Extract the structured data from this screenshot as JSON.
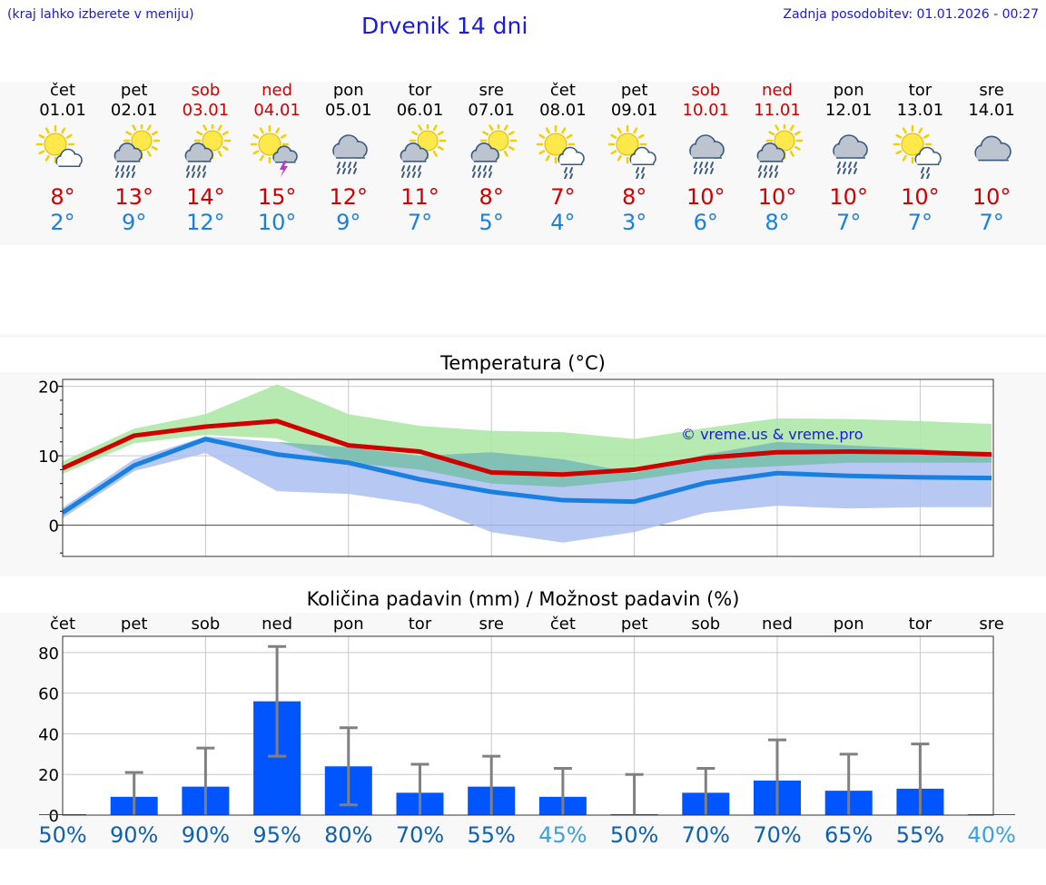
{
  "header": {
    "hint": "(kraj lahko izberete v meniju)",
    "title": "Drvenik 14 dni",
    "updated": "Zadnja posodobitev: 01.01.2026 - 00:27"
  },
  "colors": {
    "max": "#d00000",
    "min": "#1a80e0",
    "bar": "#0055ff",
    "errbar": "#808080",
    "green_band": "#aae6a3",
    "blue_band": "#aac0f0"
  },
  "days": [
    {
      "name": "čet",
      "date": "01.01",
      "weekend": false,
      "icon": "sun-cloud-icon",
      "tmax": "8°",
      "tmin": "2°"
    },
    {
      "name": "pet",
      "date": "02.01",
      "weekend": false,
      "icon": "sun-cloud-rain-icon",
      "tmax": "13°",
      "tmin": "9°"
    },
    {
      "name": "sob",
      "date": "03.01",
      "weekend": true,
      "icon": "sun-cloud-rain-icon",
      "tmax": "14°",
      "tmin": "12°"
    },
    {
      "name": "ned",
      "date": "04.01",
      "weekend": true,
      "icon": "sun-thunderstorm-icon",
      "tmax": "15°",
      "tmin": "10°"
    },
    {
      "name": "pon",
      "date": "05.01",
      "weekend": false,
      "icon": "cloud-rain-icon",
      "tmax": "12°",
      "tmin": "9°"
    },
    {
      "name": "tor",
      "date": "06.01",
      "weekend": false,
      "icon": "sun-cloud-rain-icon",
      "tmax": "11°",
      "tmin": "7°"
    },
    {
      "name": "sre",
      "date": "07.01",
      "weekend": false,
      "icon": "sun-cloud-rain-icon",
      "tmax": "8°",
      "tmin": "5°"
    },
    {
      "name": "čet",
      "date": "08.01",
      "weekend": false,
      "icon": "sun-cloud-light-rain-icon",
      "tmax": "7°",
      "tmin": "4°"
    },
    {
      "name": "pet",
      "date": "09.01",
      "weekend": false,
      "icon": "sun-cloud-light-rain-icon",
      "tmax": "8°",
      "tmin": "3°"
    },
    {
      "name": "sob",
      "date": "10.01",
      "weekend": true,
      "icon": "cloud-rain-icon",
      "tmax": "10°",
      "tmin": "6°"
    },
    {
      "name": "ned",
      "date": "11.01",
      "weekend": true,
      "icon": "sun-cloud-rain-icon",
      "tmax": "10°",
      "tmin": "8°"
    },
    {
      "name": "pon",
      "date": "12.01",
      "weekend": false,
      "icon": "cloud-rain-icon",
      "tmax": "10°",
      "tmin": "7°"
    },
    {
      "name": "tor",
      "date": "13.01",
      "weekend": false,
      "icon": "sun-cloud-light-rain-icon",
      "tmax": "10°",
      "tmin": "7°"
    },
    {
      "name": "sre",
      "date": "14.01",
      "weekend": false,
      "icon": "cloudy-icon",
      "tmax": "10°",
      "tmin": "7°"
    }
  ],
  "chart_data": [
    {
      "type": "line",
      "title": "Temperatura (°C)",
      "watermark": "© vreme.us & vreme.pro",
      "ylim": [
        -4.5,
        21
      ],
      "yticks": [
        0,
        10,
        20
      ],
      "x": [
        0,
        1,
        2,
        3,
        4,
        5,
        6,
        7,
        8,
        9,
        10,
        11,
        12,
        13
      ],
      "series": [
        {
          "name": "max",
          "values": [
            8.2,
            12.9,
            14.2,
            15.0,
            11.5,
            10.6,
            7.6,
            7.3,
            8.0,
            9.7,
            10.5,
            10.6,
            10.5,
            10.2
          ]
        },
        {
          "name": "min",
          "values": [
            1.8,
            8.6,
            12.4,
            10.2,
            9.0,
            6.6,
            4.8,
            3.6,
            3.4,
            6.1,
            7.5,
            7.1,
            6.9,
            6.8
          ]
        },
        {
          "name": "max_band_low",
          "values": [
            7.4,
            11.8,
            13.0,
            12.5,
            9.0,
            8.0,
            6.0,
            5.5,
            6.5,
            8.0,
            8.5,
            9.0,
            9.0,
            9.0
          ]
        },
        {
          "name": "max_band_high",
          "values": [
            9.2,
            13.9,
            16.0,
            20.3,
            16.0,
            14.3,
            13.6,
            13.4,
            12.4,
            14.0,
            15.4,
            15.3,
            15.0,
            14.6
          ]
        },
        {
          "name": "min_band_low",
          "values": [
            1.0,
            7.8,
            10.4,
            4.9,
            4.5,
            3.0,
            -1.0,
            -2.5,
            -1.0,
            1.8,
            2.8,
            2.4,
            2.6,
            2.6
          ]
        },
        {
          "name": "min_band_high",
          "values": [
            2.5,
            9.5,
            12.8,
            12.0,
            11.2,
            10.0,
            10.5,
            9.5,
            7.5,
            10.2,
            12.0,
            11.5,
            11.0,
            10.2
          ]
        }
      ]
    },
    {
      "type": "bar",
      "title": "Količina padavin (mm) / Možnost padavin (%)",
      "ylim": [
        0,
        88
      ],
      "yticks": [
        0,
        20,
        40,
        60,
        80
      ],
      "categories": [
        "čet",
        "pet",
        "sob",
        "ned",
        "pon",
        "tor",
        "sre",
        "čet",
        "pet",
        "sob",
        "ned",
        "pon",
        "tor",
        "sre"
      ],
      "values": [
        0,
        9,
        14,
        56,
        24,
        11,
        14,
        9,
        0,
        11,
        17,
        12,
        13,
        0
      ],
      "err_low": [
        0,
        0,
        0,
        29,
        5,
        0,
        0,
        0,
        0,
        0,
        0,
        0,
        0,
        0
      ],
      "err_high": [
        0,
        21,
        33,
        83,
        43,
        25,
        29,
        23,
        20,
        23,
        37,
        30,
        35,
        0
      ],
      "probabilities": [
        "50%",
        "90%",
        "90%",
        "95%",
        "80%",
        "70%",
        "55%",
        "45%",
        "50%",
        "70%",
        "70%",
        "65%",
        "55%",
        "40%"
      ],
      "prob_colors": [
        "#1060b0",
        "#1060b0",
        "#1060b0",
        "#1060b0",
        "#1060b0",
        "#1060b0",
        "#1060b0",
        "#40a0d8",
        "#1060b0",
        "#1060b0",
        "#1060b0",
        "#1060b0",
        "#1060b0",
        "#40a0d8"
      ]
    }
  ]
}
